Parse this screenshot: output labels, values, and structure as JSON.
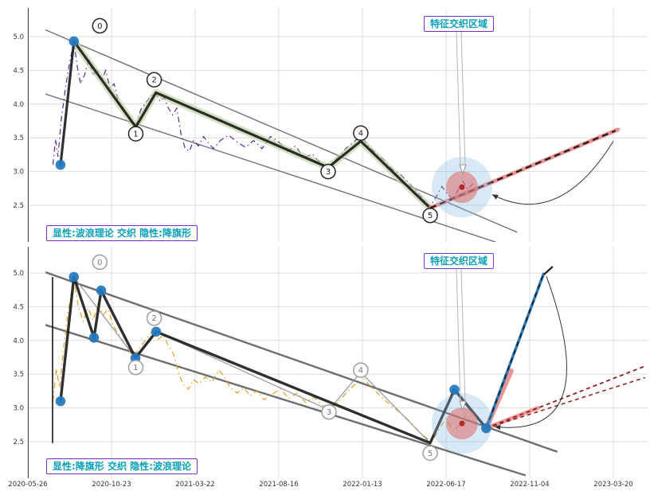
{
  "chart_data": {
    "type": "line",
    "x_ticklabels": [
      "2020-05-26",
      "2020-10-23",
      "2021-03-22",
      "2021-08-16",
      "2022-01-13",
      "2022-06-17",
      "2022-11-04",
      "2023-03-20"
    ],
    "y_ticklabels": [
      "2.5",
      "3.0",
      "3.5",
      "4.0",
      "4.5",
      "5.0"
    ],
    "y_tick_values": [
      2.5,
      3.0,
      3.5,
      4.0,
      4.5,
      5.0
    ],
    "grid_color": "#dcdcdc",
    "panels": [
      {
        "id": "top",
        "zone_label": "特征交织区域",
        "legend_label": "显性:波浪理论 交织 隐性:降旗形",
        "price": {
          "color": "#55278f",
          "points": [
            [
              0.3,
              3.1
            ],
            [
              0.33,
              3.48
            ],
            [
              0.36,
              3.22
            ],
            [
              0.4,
              3.78
            ],
            [
              0.45,
              4.25
            ],
            [
              0.5,
              4.62
            ],
            [
              0.55,
              4.93
            ],
            [
              0.59,
              4.56
            ],
            [
              0.63,
              4.3
            ],
            [
              0.68,
              4.44
            ],
            [
              0.73,
              4.68
            ],
            [
              0.78,
              4.42
            ],
            [
              0.83,
              4.52
            ],
            [
              0.88,
              4.34
            ],
            [
              0.93,
              4.5
            ],
            [
              0.98,
              4.24
            ],
            [
              1.03,
              4.3
            ],
            [
              1.08,
              4.06
            ],
            [
              1.13,
              3.96
            ],
            [
              1.18,
              3.86
            ],
            [
              1.24,
              3.72
            ],
            [
              1.29,
              3.66
            ],
            [
              1.35,
              3.92
            ],
            [
              1.41,
              4.02
            ],
            [
              1.47,
              4.12
            ],
            [
              1.53,
              4.17
            ],
            [
              1.58,
              4.04
            ],
            [
              1.63,
              4.1
            ],
            [
              1.68,
              3.94
            ],
            [
              1.73,
              3.84
            ],
            [
              1.78,
              3.94
            ],
            [
              1.83,
              3.56
            ],
            [
              1.88,
              3.34
            ],
            [
              1.93,
              3.3
            ],
            [
              1.98,
              3.46
            ],
            [
              2.04,
              3.38
            ],
            [
              2.1,
              3.52
            ],
            [
              2.16,
              3.42
            ],
            [
              2.22,
              3.34
            ],
            [
              2.3,
              3.46
            ],
            [
              2.4,
              3.54
            ],
            [
              2.5,
              3.44
            ],
            [
              2.6,
              3.36
            ],
            [
              2.7,
              3.46
            ],
            [
              2.8,
              3.34
            ],
            [
              2.9,
              3.52
            ],
            [
              3.0,
              3.44
            ],
            [
              3.1,
              3.3
            ],
            [
              3.2,
              3.38
            ],
            [
              3.3,
              3.2
            ],
            [
              3.4,
              3.26
            ],
            [
              3.5,
              3.12
            ],
            [
              3.59,
              3.06
            ],
            [
              3.7,
              3.2
            ],
            [
              3.8,
              3.34
            ],
            [
              3.9,
              3.44
            ],
            [
              3.98,
              3.54
            ],
            [
              4.06,
              3.4
            ],
            [
              4.15,
              3.28
            ],
            [
              4.25,
              3.18
            ],
            [
              4.35,
              3.04
            ],
            [
              4.45,
              2.96
            ],
            [
              4.55,
              2.84
            ],
            [
              4.65,
              2.7
            ],
            [
              4.75,
              2.56
            ],
            [
              4.81,
              2.48
            ],
            [
              4.88,
              2.62
            ],
            [
              4.95,
              2.78
            ],
            [
              5.02,
              2.66
            ],
            [
              5.08,
              2.58
            ],
            [
              5.14,
              2.72
            ],
            [
              5.2,
              2.86
            ],
            [
              5.26,
              2.74
            ],
            [
              5.32,
              2.82
            ]
          ]
        },
        "wave": {
          "color": "#1a1a1a",
          "width": 3.2,
          "points": [
            [
              0.39,
              3.1
            ],
            [
              0.55,
              4.93
            ],
            [
              1.29,
              3.66
            ],
            [
              1.53,
              4.17
            ],
            [
              3.59,
              3.06
            ],
            [
              3.98,
              3.45
            ],
            [
              4.81,
              2.46
            ]
          ]
        },
        "band": {
          "color": "#b5cf9b",
          "points": [
            [
              0.55,
              4.93
            ],
            [
              1.29,
              3.66
            ],
            [
              1.53,
              4.17
            ],
            [
              3.59,
              3.06
            ],
            [
              3.98,
              3.45
            ],
            [
              4.81,
              2.46
            ]
          ]
        },
        "channel": {
          "color": "#5a5a5a",
          "width": 1.4,
          "lines": [
            [
              [
                0.21,
                5.1
              ],
              [
                5.85,
                2.1
              ]
            ],
            [
              [
                0.21,
                4.15
              ],
              [
                5.85,
                1.85
              ]
            ]
          ]
        },
        "projections": [
          {
            "kind": "measured",
            "salmon": "#ef8f8f",
            "dash": "#1a1a1a",
            "from": [
              4.81,
              2.46
            ],
            "to": [
              7.05,
              3.62
            ]
          }
        ],
        "dots": {
          "color": "#2479bd",
          "points": [
            [
              0.39,
              3.1
            ],
            [
              0.55,
              4.93
            ]
          ]
        },
        "wave_labels": {
          "stroke": "#1a1a1a",
          "text": "#1a1a1a",
          "items": [
            [
              "0",
              0.86,
              5.16
            ],
            [
              "1",
              1.29,
              3.56
            ],
            [
              "2",
              1.51,
              4.36
            ],
            [
              "3",
              3.59,
              3.0
            ],
            [
              "4",
              3.98,
              3.57
            ],
            [
              "5",
              4.81,
              2.35
            ]
          ]
        },
        "highlight": {
          "t": 5.19,
          "v": 2.77,
          "outer": "#85b7dc",
          "inner": "#dd6a6a",
          "dot": "#b22222"
        },
        "curve_arrow": {
          "from": [
            7.0,
            3.45
          ],
          "ctrl": [
            6.35,
            2.15
          ],
          "to": [
            5.55,
            2.66
          ]
        }
      },
      {
        "id": "bottom",
        "zone_label": "特征交织区域",
        "legend_label": "显性:降旗形 交织 隐性:波浪理论",
        "price": {
          "color": "#dda018",
          "points": [
            [
              0.3,
              3.1
            ],
            [
              0.34,
              3.58
            ],
            [
              0.38,
              3.3
            ],
            [
              0.43,
              3.92
            ],
            [
              0.48,
              4.42
            ],
            [
              0.55,
              4.92
            ],
            [
              0.6,
              4.52
            ],
            [
              0.66,
              4.28
            ],
            [
              0.72,
              4.48
            ],
            [
              0.78,
              4.3
            ],
            [
              0.84,
              4.54
            ],
            [
              0.9,
              4.38
            ],
            [
              0.96,
              4.46
            ],
            [
              1.02,
              4.22
            ],
            [
              1.08,
              4.1
            ],
            [
              1.14,
              3.98
            ],
            [
              1.2,
              3.88
            ],
            [
              1.26,
              3.74
            ],
            [
              1.32,
              3.86
            ],
            [
              1.38,
              3.96
            ],
            [
              1.44,
              4.06
            ],
            [
              1.5,
              4.14
            ],
            [
              1.56,
              4.02
            ],
            [
              1.62,
              4.08
            ],
            [
              1.68,
              3.92
            ],
            [
              1.74,
              3.8
            ],
            [
              1.8,
              3.52
            ],
            [
              1.86,
              3.34
            ],
            [
              1.92,
              3.28
            ],
            [
              1.98,
              3.42
            ],
            [
              2.05,
              3.36
            ],
            [
              2.12,
              3.46
            ],
            [
              2.2,
              3.38
            ],
            [
              2.28,
              3.56
            ],
            [
              2.34,
              3.48
            ],
            [
              2.42,
              3.3
            ],
            [
              2.5,
              3.22
            ],
            [
              2.58,
              3.3
            ],
            [
              2.66,
              3.18
            ],
            [
              2.74,
              3.26
            ],
            [
              2.82,
              3.12
            ],
            [
              2.92,
              3.2
            ],
            [
              3.02,
              3.28
            ],
            [
              3.12,
              3.14
            ],
            [
              3.22,
              3.22
            ],
            [
              3.32,
              3.08
            ],
            [
              3.42,
              3.16
            ],
            [
              3.52,
              3.04
            ],
            [
              3.62,
              2.98
            ],
            [
              3.72,
              3.1
            ],
            [
              3.82,
              3.24
            ],
            [
              3.92,
              3.36
            ],
            [
              3.98,
              3.5
            ],
            [
              4.08,
              3.34
            ],
            [
              4.18,
              3.22
            ],
            [
              4.28,
              3.1
            ],
            [
              4.38,
              3.0
            ],
            [
              4.48,
              2.9
            ],
            [
              4.58,
              2.78
            ],
            [
              4.68,
              2.64
            ],
            [
              4.78,
              2.54
            ],
            [
              4.84,
              2.52
            ],
            [
              4.92,
              2.7
            ],
            [
              5.0,
              2.84
            ],
            [
              5.08,
              2.66
            ],
            [
              5.16,
              2.74
            ],
            [
              5.24,
              2.9
            ],
            [
              5.32,
              2.8
            ]
          ]
        },
        "wave": {
          "color": "#1a1a1a",
          "width": 3.4,
          "points": [
            [
              0.39,
              3.1
            ],
            [
              0.55,
              4.94
            ],
            [
              0.79,
              4.04
            ],
            [
              0.876,
              4.74
            ],
            [
              1.286,
              3.74
            ],
            [
              1.533,
              4.13
            ],
            [
              4.81,
              2.48
            ],
            [
              5.1,
              3.27
            ],
            [
              5.48,
              2.7
            ]
          ]
        },
        "thin_wave": {
          "color": "#8a8a8a",
          "points": [
            [
              0.55,
              4.94
            ],
            [
              1.286,
              3.74
            ],
            [
              1.533,
              4.13
            ],
            [
              3.6,
              2.97
            ],
            [
              3.98,
              3.53
            ],
            [
              4.81,
              2.48
            ]
          ]
        },
        "pole": {
          "t": 0.295,
          "v1": 2.48,
          "v2": 4.94
        },
        "channel": {
          "color": "#555555",
          "width": 2.4,
          "lines": [
            [
              [
                0.21,
                5.01
              ],
              [
                6.33,
                2.35
              ]
            ],
            [
              [
                0.21,
                4.23
              ],
              [
                5.95,
                2.0
              ]
            ]
          ]
        },
        "projections": [
          {
            "kind": "pole",
            "salmon": "#ef8f8f",
            "blue": "#2479bd",
            "dash": "#222222",
            "from": [
              5.48,
              2.7
            ],
            "to": [
              6.17,
              5.0
            ],
            "salmon_to": [
              5.78,
              3.55
            ]
          },
          {
            "kind": "measured_thin",
            "salmon": "#ef8f8f",
            "dash": "#8b2020",
            "from": [
              5.48,
              2.7
            ],
            "to": [
              7.38,
              3.62
            ],
            "salmon_to": [
              6.1,
              3.0
            ]
          },
          {
            "kind": "thin2",
            "dash": "#8b2020",
            "from": [
              5.48,
              2.7
            ],
            "to": [
              7.38,
              3.45
            ]
          }
        ],
        "dots": {
          "color": "#2479bd",
          "points": [
            [
              0.39,
              3.1
            ],
            [
              0.55,
              4.94
            ],
            [
              0.79,
              4.04
            ],
            [
              0.876,
              4.74
            ],
            [
              1.286,
              3.74
            ],
            [
              1.533,
              4.13
            ],
            [
              5.1,
              3.27
            ],
            [
              5.48,
              2.7
            ]
          ]
        },
        "wave_labels": {
          "stroke": "#999999",
          "text": "#777777",
          "items": [
            [
              "0",
              0.86,
              5.16
            ],
            [
              "1",
              1.29,
              3.6
            ],
            [
              "2",
              1.51,
              4.33
            ],
            [
              "3",
              3.6,
              2.94
            ],
            [
              "4",
              3.98,
              3.56
            ],
            [
              "5",
              4.81,
              2.33
            ]
          ]
        },
        "highlight": {
          "t": 5.19,
          "v": 2.77,
          "outer": "#85b7dc",
          "inner": "#dd6a6a",
          "dot": "#b22222"
        },
        "curve_arrow": {
          "from": [
            6.2,
            4.95
          ],
          "ctrl": [
            6.9,
            2.55
          ],
          "to": [
            5.58,
            2.72
          ]
        },
        "flag_marker": {
          "t": 6.17,
          "v": 5.0
        }
      }
    ]
  }
}
